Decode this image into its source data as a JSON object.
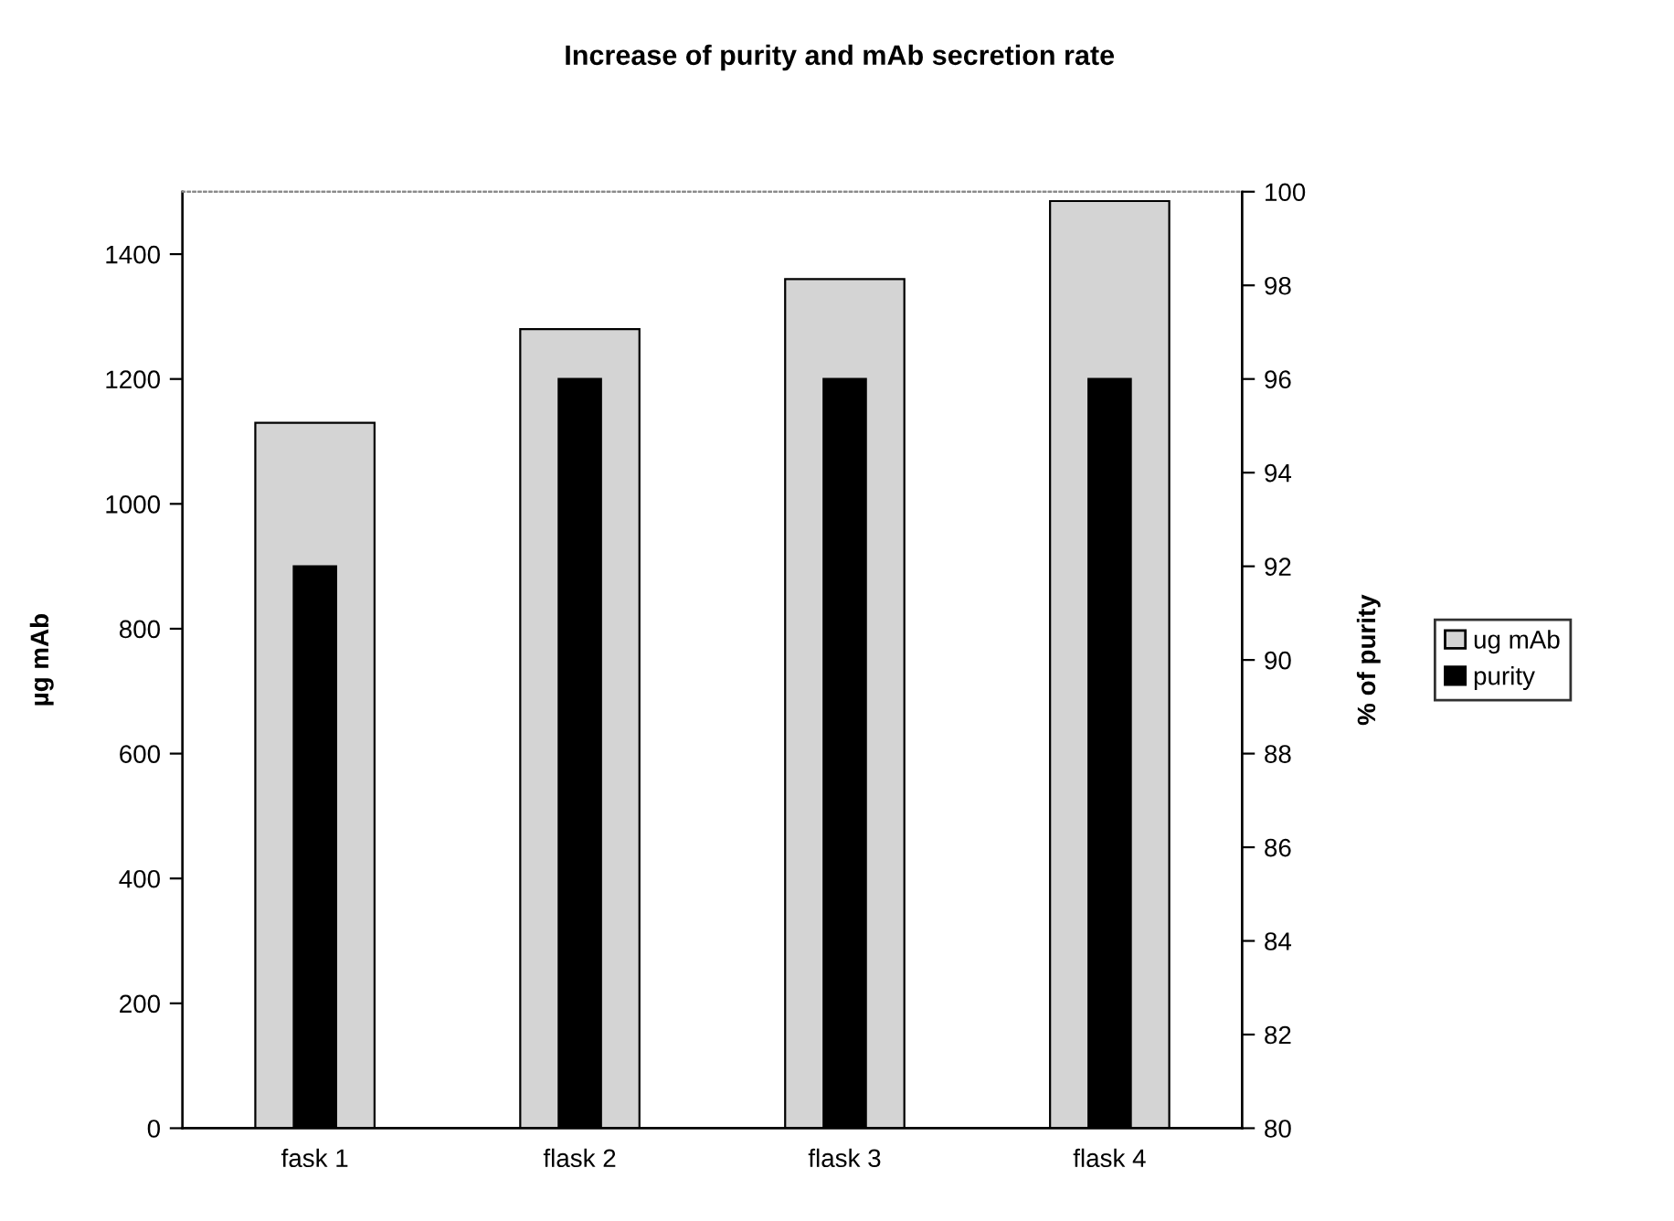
{
  "chart_data": {
    "type": "bar",
    "title": "Increase of purity and mAb secretion rate",
    "ylabel": "µg mAb",
    "y2label": "% of purity",
    "categories": [
      "fask 1",
      "flask 2",
      "flask 3",
      "flask 4"
    ],
    "series": [
      {
        "name": "ug mAb",
        "color": "#d4d4d4",
        "values": [
          1130,
          1280,
          1360,
          1485
        ]
      },
      {
        "name": "purity",
        "color": "#000000",
        "axis": "y2",
        "values": [
          92,
          96,
          96,
          96
        ]
      }
    ],
    "ylim": [
      0,
      1500
    ],
    "yticks": [
      0,
      200,
      400,
      600,
      800,
      1000,
      1200,
      1400
    ],
    "y2lim": [
      80,
      100
    ],
    "y2ticks": [
      80,
      82,
      84,
      86,
      88,
      90,
      92,
      94,
      96,
      98,
      100
    ],
    "legend": "right",
    "grid": false
  }
}
